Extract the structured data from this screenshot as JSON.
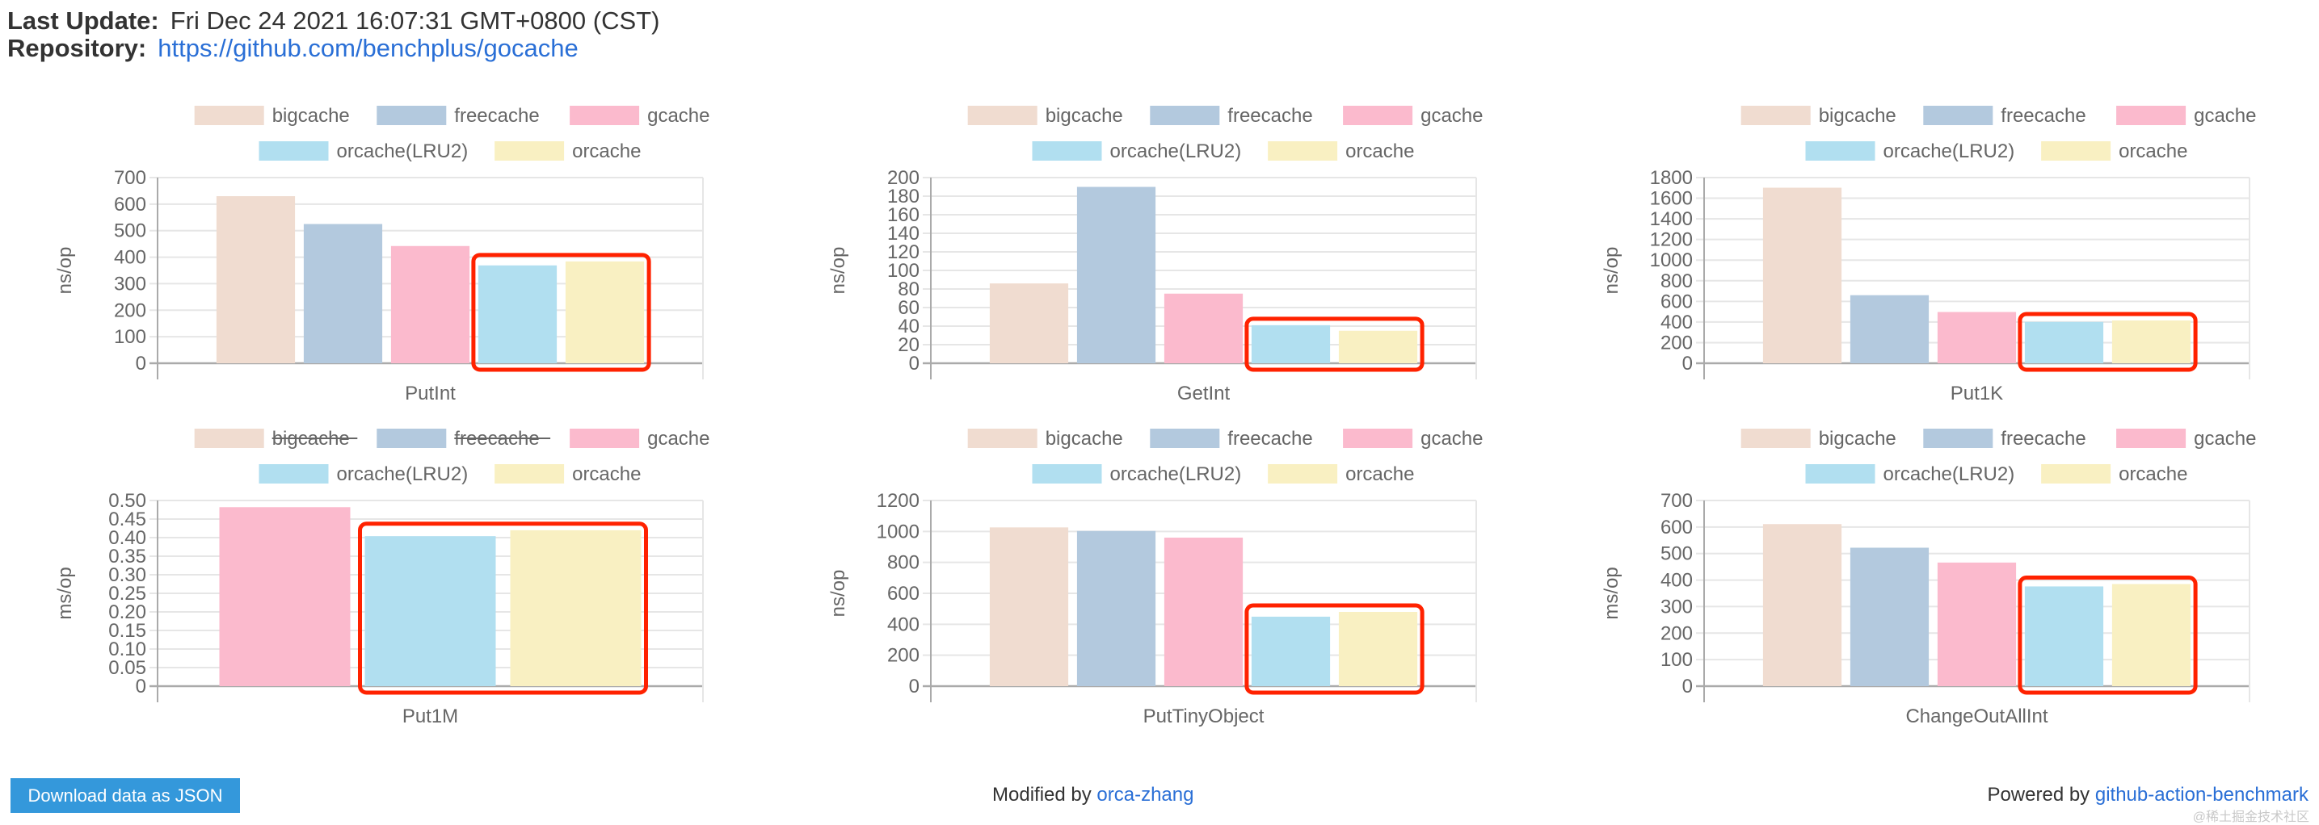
{
  "header": {
    "last_update_label": "Last Update:",
    "last_update_value": "Fri Dec 24 2021 16:07:31 GMT+0800 (CST)",
    "repository_label": "Repository:",
    "repository_url": "https://github.com/benchplus/gocache"
  },
  "legend_colors": {
    "bigcache": "#f0dcd0",
    "freecache": "#b3c9de",
    "gcache": "#fbbacd",
    "orcache(LRU2)": "#b1dff0",
    "orcache": "#f9f0c2"
  },
  "highlight_color": "#ff2200",
  "chart_data": [
    {
      "type": "bar",
      "title": "",
      "xlabel": "PutInt",
      "ylabel": "ns/op",
      "ylim": [
        0,
        700
      ],
      "yticks": [
        0,
        100,
        200,
        300,
        400,
        500,
        600,
        700
      ],
      "tick_labels": [
        "0",
        "100",
        "200",
        "300",
        "400",
        "500",
        "600",
        "700"
      ],
      "series": [
        {
          "name": "bigcache",
          "value": 630,
          "hidden": false
        },
        {
          "name": "freecache",
          "value": 525,
          "hidden": false
        },
        {
          "name": "gcache",
          "value": 442,
          "hidden": false
        },
        {
          "name": "orcache(LRU2)",
          "value": 369,
          "hidden": false
        },
        {
          "name": "orcache",
          "value": 384,
          "hidden": false
        }
      ],
      "highlighted": [
        "orcache(LRU2)",
        "orcache"
      ],
      "grid": true,
      "legend": "top"
    },
    {
      "type": "bar",
      "title": "",
      "xlabel": "GetInt",
      "ylabel": "ns/op",
      "ylim": [
        0,
        200
      ],
      "yticks": [
        0,
        20,
        40,
        60,
        80,
        100,
        120,
        140,
        160,
        180,
        200
      ],
      "tick_labels": [
        "0",
        "20",
        "40",
        "60",
        "80",
        "100",
        "120",
        "140",
        "160",
        "180",
        "200"
      ],
      "series": [
        {
          "name": "bigcache",
          "value": 86,
          "hidden": false
        },
        {
          "name": "freecache",
          "value": 190,
          "hidden": false
        },
        {
          "name": "gcache",
          "value": 75,
          "hidden": false
        },
        {
          "name": "orcache(LRU2)",
          "value": 41,
          "hidden": false
        },
        {
          "name": "orcache",
          "value": 35,
          "hidden": false
        }
      ],
      "highlighted": [
        "orcache(LRU2)",
        "orcache"
      ],
      "grid": true,
      "legend": "top"
    },
    {
      "type": "bar",
      "title": "",
      "xlabel": "Put1K",
      "ylabel": "ns/op",
      "ylim": [
        0,
        1800
      ],
      "yticks": [
        0,
        200,
        400,
        600,
        800,
        1000,
        1200,
        1400,
        1600,
        1800
      ],
      "tick_labels": [
        "0",
        "200",
        "400",
        "600",
        "800",
        "1000",
        "1200",
        "1400",
        "1600",
        "1800"
      ],
      "series": [
        {
          "name": "bigcache",
          "value": 1702,
          "hidden": false
        },
        {
          "name": "freecache",
          "value": 660,
          "hidden": false
        },
        {
          "name": "gcache",
          "value": 497,
          "hidden": false
        },
        {
          "name": "orcache(LRU2)",
          "value": 401,
          "hidden": false
        },
        {
          "name": "orcache",
          "value": 415,
          "hidden": false
        }
      ],
      "highlighted": [
        "orcache(LRU2)",
        "orcache"
      ],
      "grid": true,
      "legend": "top"
    },
    {
      "type": "bar",
      "title": "",
      "xlabel": "Put1M",
      "ylabel": "ms/op",
      "ylim": [
        0,
        0.5
      ],
      "yticks": [
        0,
        0.05,
        0.1,
        0.15,
        0.2,
        0.25,
        0.3,
        0.35,
        0.4,
        0.45,
        0.5
      ],
      "tick_labels": [
        "0",
        "0.05",
        "0.10",
        "0.15",
        "0.20",
        "0.25",
        "0.30",
        "0.35",
        "0.40",
        "0.45",
        "0.50"
      ],
      "series": [
        {
          "name": "bigcache",
          "value": null,
          "hidden": true
        },
        {
          "name": "freecache",
          "value": null,
          "hidden": true
        },
        {
          "name": "gcache",
          "value": 0.482,
          "hidden": false
        },
        {
          "name": "orcache(LRU2)",
          "value": 0.404,
          "hidden": false
        },
        {
          "name": "orcache",
          "value": 0.42,
          "hidden": false
        }
      ],
      "highlighted": [
        "orcache(LRU2)",
        "orcache"
      ],
      "grid": true,
      "legend": "top"
    },
    {
      "type": "bar",
      "title": "",
      "xlabel": "PutTinyObject",
      "ylabel": "ns/op",
      "ylim": [
        0,
        1200
      ],
      "yticks": [
        0,
        200,
        400,
        600,
        800,
        1000,
        1200
      ],
      "tick_labels": [
        "0",
        "200",
        "400",
        "600",
        "800",
        "1000",
        "1200"
      ],
      "series": [
        {
          "name": "bigcache",
          "value": 1026,
          "hidden": false
        },
        {
          "name": "freecache",
          "value": 1003,
          "hidden": false
        },
        {
          "name": "gcache",
          "value": 960,
          "hidden": false
        },
        {
          "name": "orcache(LRU2)",
          "value": 449,
          "hidden": false
        },
        {
          "name": "orcache",
          "value": 480,
          "hidden": false
        }
      ],
      "highlighted": [
        "orcache(LRU2)",
        "orcache"
      ],
      "grid": true,
      "legend": "top"
    },
    {
      "type": "bar",
      "title": "",
      "xlabel": "ChangeOutAllInt",
      "ylabel": "ms/op",
      "ylim": [
        0,
        700
      ],
      "yticks": [
        0,
        100,
        200,
        300,
        400,
        500,
        600,
        700
      ],
      "tick_labels": [
        "0",
        "100",
        "200",
        "300",
        "400",
        "500",
        "600",
        "700"
      ],
      "series": [
        {
          "name": "bigcache",
          "value": 611,
          "hidden": false
        },
        {
          "name": "freecache",
          "value": 522,
          "hidden": false
        },
        {
          "name": "gcache",
          "value": 466,
          "hidden": false
        },
        {
          "name": "orcache(LRU2)",
          "value": 376,
          "hidden": false
        },
        {
          "name": "orcache",
          "value": 385,
          "hidden": false
        }
      ],
      "highlighted": [
        "orcache(LRU2)",
        "orcache"
      ],
      "grid": true,
      "legend": "top"
    }
  ],
  "footer": {
    "download_button": "Download data as JSON",
    "modified_by_label": "Modified by",
    "modified_by_link": "orca-zhang",
    "powered_by_label": "Powered by",
    "powered_by_link": "github-action-benchmark",
    "watermark": "@稀土掘金技术社区"
  }
}
